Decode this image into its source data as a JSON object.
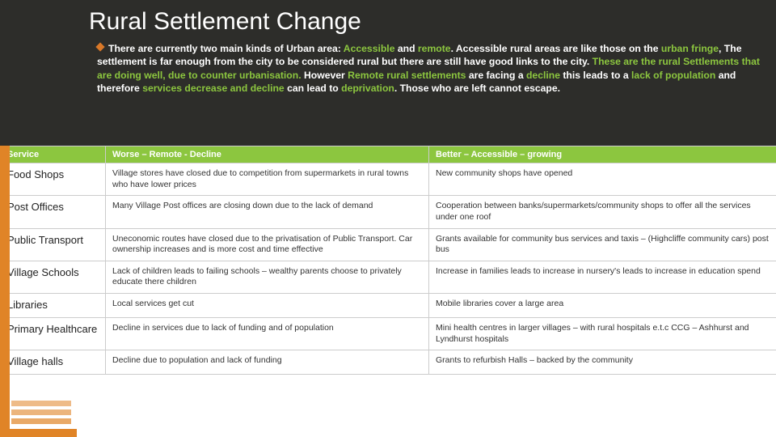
{
  "title": "Rural Settlement Change",
  "intro_parts": {
    "p1": "There are currently two main kinds of Urban area: ",
    "g1": "Accessible",
    "p2": " and ",
    "g2": "remote",
    "p3": ". Accessible rural areas are like those on the ",
    "g3": "urban fringe",
    "p4": ", The settlement is far enough from the city to be considered rural but there are still have good links to the city. ",
    "g4": "These are the rural Settlements that are doing well, due to counter urbanisation.",
    "p5": " However ",
    "g5": "Remote rural settlements",
    "p6": " are facing a ",
    "g6": "decline",
    "p7": " this leads to a ",
    "g7": "lack of population",
    "p8": " and therefore ",
    "g8": "services decrease and decline",
    "p9": " can lead to ",
    "g9": "deprivation",
    "p10": ". Those who are left cannot escape."
  },
  "columns": {
    "service": "Service",
    "worse": "Worse – Remote - Decline",
    "better": "Better – Accessible – growing"
  },
  "rows": [
    {
      "service": "Food Shops",
      "worse": "Village stores have closed due to competition from supermarkets in rural towns who have lower prices",
      "better": "New community shops have opened"
    },
    {
      "service": "Post Offices",
      "worse": "Many Village Post offices are closing down due to the lack of demand",
      "better": "Cooperation between banks/supermarkets/community shops to offer all the services under one roof"
    },
    {
      "service": "Public Transport",
      "worse": "Uneconomic routes have closed due to the privatisation of Public Transport. Car ownership increases and is more cost and time effective",
      "better": "Grants available for community bus services and taxis – (Highcliffe community cars) post bus"
    },
    {
      "service": "Village Schools",
      "worse": "Lack of children leads to failing schools – wealthy parents choose to privately educate there children",
      "better": "Increase in families leads to increase in nursery's leads to increase in education spend"
    },
    {
      "service": "Libraries",
      "worse": "Local services get cut",
      "better": "Mobile libraries cover a large area"
    },
    {
      "service": "Primary Healthcare",
      "worse": "Decline in services due to lack of funding and of population",
      "better": "Mini health centres in larger villages – with rural hospitals e.t.c CCG – Ashhurst and Lyndhurst hospitals"
    },
    {
      "service": "Village halls",
      "worse": "Decline due to population and lack of funding",
      "better": "Grants to refurbish Halls – backed by the community"
    }
  ],
  "colors": {
    "header_bg": "#2d2d2a",
    "accent_orange": "#e08427",
    "accent_green": "#8cc63f",
    "text_white": "#ffffff",
    "border": "#cccccc"
  }
}
